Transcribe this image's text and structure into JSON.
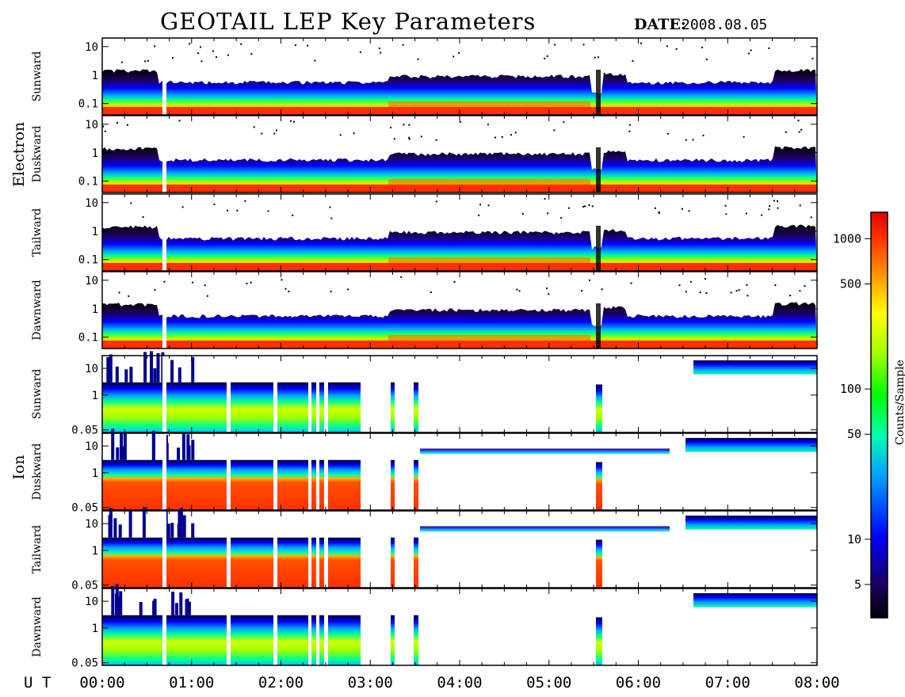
{
  "title": "GEOTAIL LEP Key Parameters",
  "date_label": "DATE:",
  "date_value": "2008.08.05",
  "ut_label": "U T",
  "chart_data": {
    "type": "heatmap",
    "x_ticks": [
      "00:00",
      "01:00",
      "02:00",
      "03:00",
      "04:00",
      "05:00",
      "06:00",
      "07:00",
      "08:00"
    ],
    "x_range_hours": [
      0,
      8
    ],
    "groups": [
      {
        "name": "Electron",
        "y_ticks": [
          "10",
          "1",
          "0.1"
        ],
        "y_range": [
          0.04,
          20
        ],
        "y_scale": "log",
        "panels": [
          "Sunward",
          "Duskward",
          "Tailward",
          "Dawnward"
        ]
      },
      {
        "name": "Ion",
        "y_ticks": [
          "10",
          "1",
          "0.05"
        ],
        "y_range": [
          0.04,
          30
        ],
        "y_scale": "log",
        "panels": [
          "Sunward",
          "Duskward",
          "Tailward",
          "Dawnward"
        ]
      }
    ],
    "colorbar": {
      "label": "Counts/Sample",
      "scale": "log",
      "range": [
        3,
        1500
      ],
      "ticks": [
        "1000",
        "500",
        "100",
        "50",
        "10",
        "5"
      ],
      "tick_values": [
        1000,
        500,
        100,
        50,
        10,
        5
      ],
      "colors": [
        "#000000",
        "#1c0060",
        "#0000ff",
        "#00a0ff",
        "#00ffb0",
        "#00ff00",
        "#a0ff00",
        "#ffff00",
        "#ff9000",
        "#ff3000",
        "#e00000"
      ]
    }
  }
}
